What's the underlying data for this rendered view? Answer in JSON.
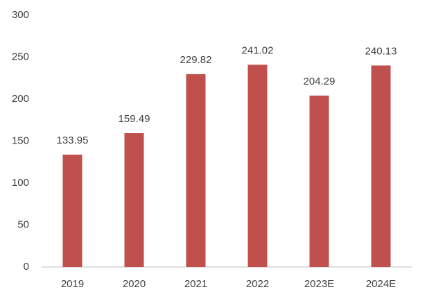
{
  "chart_data": {
    "type": "bar",
    "categories": [
      "2019",
      "2020",
      "2021",
      "2022",
      "2023E",
      "2024E"
    ],
    "values": [
      133.95,
      159.49,
      229.82,
      241.02,
      204.29,
      240.13
    ],
    "color": "#c0504d",
    "ylim": [
      0,
      300
    ],
    "yticks": [
      0,
      50,
      100,
      150,
      200,
      250,
      300
    ],
    "grid": false
  }
}
